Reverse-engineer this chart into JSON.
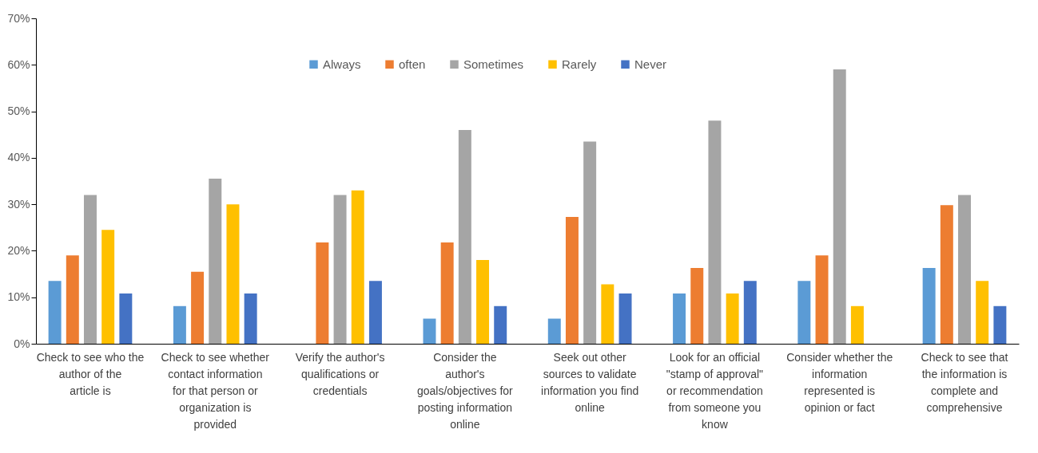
{
  "chart_data": {
    "type": "bar",
    "categories": [
      "Check to see who the author of the article is",
      "Check to see whether contact information for that person or organization is provided",
      "Verify the author's qualifications or credentials",
      "Consider the author's goals/objectives for posting information online",
      "Seek out other sources to validate information you find online",
      "Look for an official \"stamp of approval\" or recommendation from someone you know",
      "Consider whether the information represented is opinion or fact",
      "Check to see that the information is complete and comprehensive"
    ],
    "series": [
      {
        "name": "Always",
        "color": "#5b9bd5",
        "values": [
          13.5,
          8.1,
          0,
          5.4,
          5.4,
          10.8,
          13.5,
          16.3
        ]
      },
      {
        "name": "often",
        "color": "#ed7d31",
        "values": [
          19,
          15.5,
          21.8,
          21.8,
          27.3,
          16.3,
          19,
          29.8
        ]
      },
      {
        "name": "Sometimes",
        "color": "#a5a5a5",
        "values": [
          32,
          35.5,
          32,
          46,
          43.5,
          48,
          59,
          32
        ]
      },
      {
        "name": "Rarely",
        "color": "#ffc000",
        "values": [
          24.5,
          30,
          33,
          18,
          12.8,
          10.8,
          8.1,
          13.5
        ]
      },
      {
        "name": "Never",
        "color": "#4472c4",
        "values": [
          10.8,
          10.8,
          13.5,
          8.1,
          10.8,
          13.5,
          0,
          8.1
        ]
      }
    ],
    "ylim": [
      0,
      70
    ],
    "yticks": [
      {
        "value": 0,
        "label": "0%"
      },
      {
        "value": 10,
        "label": "10%"
      },
      {
        "value": 20,
        "label": "20%"
      },
      {
        "value": 30,
        "label": "30%"
      },
      {
        "value": 40,
        "label": "40%"
      },
      {
        "value": 50,
        "label": "50%"
      },
      {
        "value": 60,
        "label": "60%"
      },
      {
        "value": 70,
        "label": "70%"
      }
    ],
    "grid": false,
    "legend": "top"
  }
}
